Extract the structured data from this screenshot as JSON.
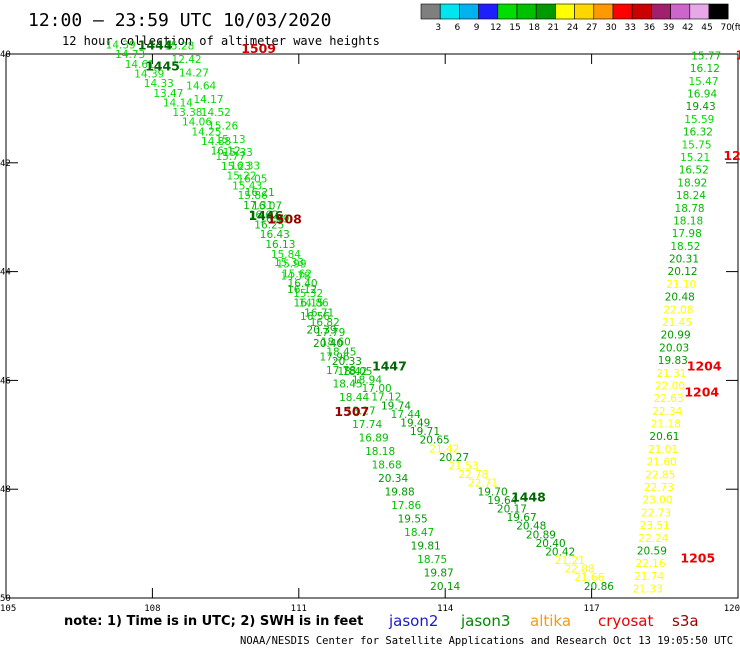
{
  "title": "12:00 – 23:59 UTC 10/03/2020",
  "subtitle": "12 hour collection of altimeter wave heights",
  "colorbar": {
    "unit": "(ft)",
    "labels": [
      "3",
      "6",
      "9",
      "12",
      "15",
      "18",
      "21",
      "24",
      "27",
      "30",
      "33",
      "36",
      "39",
      "42",
      "45",
      "70"
    ],
    "colors": [
      "#7f7f7f",
      "#00e5ee",
      "#00b2ee",
      "#1e1eff",
      "#00dd00",
      "#00c000",
      "#009a00",
      "#ffff00",
      "#ffd700",
      "#ff9900",
      "#ff0000",
      "#cc0000",
      "#a0206e",
      "#cc66cc",
      "#e6a8e6",
      "#000000"
    ]
  },
  "axes": {
    "lat_labels": [
      "40",
      "42",
      "44",
      "46",
      "48",
      "50"
    ],
    "lon_labels": [
      "105",
      "108",
      "111",
      "114",
      "117",
      "120"
    ],
    "lon_range": [
      105,
      120
    ],
    "lat_range": [
      40,
      50
    ]
  },
  "note": "note:  1) Time is in UTC;  2) SWH is in feet",
  "satellites": [
    {
      "name": "jason2",
      "color": "#1a1acc"
    },
    {
      "name": "jason3",
      "color": "#008800"
    },
    {
      "name": "altika",
      "color": "#ff9900"
    },
    {
      "name": "cryosat",
      "color": "#ee0000"
    },
    {
      "name": "s3a",
      "color": "#990000"
    }
  ],
  "footer": "NOAA/NESDIS Center for Satellite Applications and Research    Oct 13 19:05:50 UTC 2020",
  "pass_labels": [
    {
      "text": "1444",
      "lon": 107.7,
      "lat": 39.92,
      "color": "#006600"
    },
    {
      "text": "1445",
      "lon": 107.85,
      "lat": 40.3,
      "color": "#006600"
    },
    {
      "text": "1509",
      "lon": 109.82,
      "lat": 39.98,
      "color": "#cc0000"
    },
    {
      "text": "1446",
      "lon": 109.97,
      "lat": 43.05,
      "color": "#006600"
    },
    {
      "text": "1508",
      "lon": 110.35,
      "lat": 43.12,
      "color": "#990000"
    },
    {
      "text": "1447",
      "lon": 112.5,
      "lat": 45.82,
      "color": "#006600"
    },
    {
      "text": "1507",
      "lon": 111.73,
      "lat": 46.65,
      "color": "#990000"
    },
    {
      "text": "1448",
      "lon": 115.35,
      "lat": 48.23,
      "color": "#006600"
    },
    {
      "text": "1204",
      "lon": 118.95,
      "lat": 45.82,
      "color": "#ee0000"
    },
    {
      "text": "1204",
      "lon": 118.9,
      "lat": 46.3,
      "color": "#ee0000"
    },
    {
      "text": "1205",
      "lon": 118.82,
      "lat": 49.35,
      "color": "#ee0000"
    },
    {
      "text": "1204",
      "lon": 119.7,
      "lat": 41.95,
      "color": "#ee0000"
    },
    {
      "text": "12",
      "lon": 119.95,
      "lat": 40.1,
      "color": "#ee0000"
    }
  ],
  "tracks": [
    {
      "name": "jason3-1444",
      "start": [
        107.35,
        39.9
      ],
      "end": [
        109.5,
        41.85
      ],
      "values": [
        "14.39",
        "14.73",
        "14.61",
        "14.39",
        "14.33",
        "13.47",
        "14.14",
        "13.38",
        "14.06",
        "14.25",
        "14.88",
        "16.12"
      ],
      "colors": [
        "#00dd00",
        "#00dd00",
        "#00dd00",
        "#00dd00",
        "#00dd00",
        "#00dd00",
        "#00dd00",
        "#00dd00",
        "#00dd00",
        "#00dd00",
        "#00dd00",
        "#00c000"
      ]
    },
    {
      "name": "jason3-1445",
      "start": [
        108.55,
        39.92
      ],
      "end": [
        110.5,
        43.1
      ],
      "values": [
        "15.28",
        "12.42",
        "14.27",
        "14.64",
        "14.17",
        "14.52",
        "15.26",
        "15.13",
        "15.33",
        "16.33",
        "16.05",
        "16.21",
        "16.07",
        "16.49"
      ],
      "colors": [
        "#00dd00",
        "#00dd00",
        "#00dd00",
        "#00dd00",
        "#00dd00",
        "#00dd00",
        "#00dd00",
        "#00dd00",
        "#00dd00",
        "#00dd00",
        "#00dd00",
        "#00c000",
        "#00c000",
        "#00c000"
      ]
    },
    {
      "name": "jason3-1446",
      "start": [
        109.6,
        41.95
      ],
      "end": [
        112.1,
        45.9
      ],
      "values": [
        "15.77",
        "15.23",
        "15.22",
        "15.43",
        "15.86",
        "17.31",
        "16.62",
        "16.25",
        "16.43",
        "16.13",
        "15.84",
        "15.99",
        "15.62",
        "16.40",
        "15.32",
        "14.86",
        "16.71",
        "16.82",
        "17.79",
        "18.60",
        "18.45",
        "20.33",
        "18.42"
      ],
      "colors": [
        "#00dd00",
        "#00dd00",
        "#00dd00",
        "#00dd00",
        "#00dd00",
        "#00c000",
        "#00c000",
        "#00c000",
        "#00c000",
        "#00c000",
        "#00dd00",
        "#00dd00",
        "#00dd00",
        "#00c000",
        "#00dd00",
        "#00dd00",
        "#00c000",
        "#00c000",
        "#00c000",
        "#00c000",
        "#00c000",
        "#009a00",
        "#00c000"
      ]
    },
    {
      "name": "jason3-1447",
      "start": [
        110.8,
        43.9
      ],
      "end": [
        114.0,
        49.85
      ],
      "values": [
        "15.33",
        "14.78",
        "16.12",
        "16.15",
        "16.56",
        "20.39",
        "20.40",
        "17.96",
        "17.78",
        "18.45",
        "18.44",
        "18.27",
        "17.74",
        "16.89",
        "18.18",
        "18.68",
        "20.34",
        "19.88",
        "17.86",
        "19.55",
        "18.47",
        "19.81",
        "18.75",
        "19.87",
        "20.14"
      ],
      "colors": [
        "#00dd00",
        "#00dd00",
        "#00c000",
        "#00c000",
        "#00c000",
        "#009a00",
        "#009a00",
        "#00c000",
        "#00c000",
        "#00c000",
        "#00c000",
        "#00c000",
        "#00c000",
        "#00c000",
        "#00c000",
        "#00c000",
        "#009a00",
        "#009a00",
        "#00c000",
        "#009a00",
        "#00c000",
        "#009a00",
        "#00c000",
        "#009a00",
        "#009a00"
      ]
    },
    {
      "name": "jason3-1448",
      "start": [
        112.2,
        45.9
      ],
      "end": [
        117.15,
        49.85
      ],
      "values": [
        "18.05",
        "18.94",
        "17.00",
        "17.12",
        "19.74",
        "17.44",
        "19.49",
        "19.71",
        "20.65",
        "21.42",
        "20.27",
        "21.53",
        "22.78",
        "22.71",
        "19.70",
        "19.64",
        "20.17",
        "19.67",
        "20.48",
        "20.89",
        "20.40",
        "20.42",
        "21.21",
        "22.88",
        "21.66",
        "20.86"
      ],
      "colors": [
        "#00c000",
        "#00c000",
        "#00c000",
        "#00c000",
        "#009a00",
        "#00c000",
        "#009a00",
        "#009a00",
        "#009a00",
        "#ffff00",
        "#009a00",
        "#ffff00",
        "#ffff00",
        "#ffff00",
        "#009a00",
        "#009a00",
        "#009a00",
        "#009a00",
        "#009a00",
        "#009a00",
        "#009a00",
        "#009a00",
        "#ffff00",
        "#ffff00",
        "#ffff00",
        "#009a00"
      ]
    },
    {
      "name": "jason3-east",
      "start": [
        119.35,
        40.1
      ],
      "end": [
        118.15,
        49.9
      ],
      "values": [
        "15.77",
        "16.12",
        "15.47",
        "16.94",
        "19.43",
        "15.59",
        "16.32",
        "15.75",
        "15.21",
        "16.52",
        "18.92",
        "18.24",
        "18.78",
        "18.18",
        "17.98",
        "18.52",
        "20.31",
        "20.12",
        "21.10",
        "20.48",
        "22.08",
        "21.45",
        "20.99",
        "20.03",
        "19.83",
        "21.31",
        "22.00",
        "22.63",
        "22.34",
        "21.18",
        "20.61",
        "21.01",
        "21.60",
        "22.85",
        "22.73",
        "23.00",
        "22.73",
        "23.51",
        "22.24",
        "20.59",
        "22.16",
        "21.74",
        "21.33"
      ],
      "colors": [
        "#00c000",
        "#00c000",
        "#00dd00",
        "#00c000",
        "#009a00",
        "#00dd00",
        "#00c000",
        "#00dd00",
        "#00dd00",
        "#00c000",
        "#00c000",
        "#00c000",
        "#00c000",
        "#00c000",
        "#00c000",
        "#00c000",
        "#009a00",
        "#009a00",
        "#ffff00",
        "#009a00",
        "#ffff00",
        "#ffff00",
        "#009a00",
        "#009a00",
        "#009a00",
        "#ffff00",
        "#ffff00",
        "#ffff00",
        "#ffff00",
        "#ffff00",
        "#009a00",
        "#ffff00",
        "#ffff00",
        "#ffff00",
        "#ffff00",
        "#ffff00",
        "#ffff00",
        "#ffff00",
        "#ffff00",
        "#009a00",
        "#ffff00",
        "#ffff00",
        "#ffff00"
      ]
    }
  ]
}
